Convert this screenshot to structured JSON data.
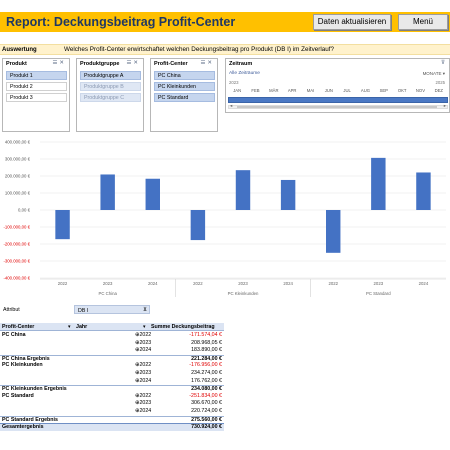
{
  "header": {
    "title": "Report: Deckungsbeitrag Profit-Center",
    "refresh_label": "Daten aktualisieren",
    "menu_label": "Menü"
  },
  "question": {
    "label": "Auswertung",
    "text": "Welches Profit-Center erwirtschaftet welchen Deckungsbeitrag pro Produkt (DB I) im Zeitverlauf?"
  },
  "slicers": {
    "produkt": {
      "title": "Produkt",
      "items": [
        "Produkt 1",
        "Produkt 2",
        "Produkt 3"
      ]
    },
    "produktgruppe": {
      "title": "Produktgruppe",
      "items": [
        "Produktgruppe A",
        "Produktgruppe B",
        "Produktgruppe C"
      ]
    },
    "profitcenter": {
      "title": "Profit-Center",
      "items": [
        "PC China",
        "PC Kleinkunden",
        "PC Standard"
      ]
    }
  },
  "timeline": {
    "title": "Zeitraum",
    "all_label": "Alle Zeiträume",
    "unit": "MONATE",
    "year_start": "2023",
    "year_end": "2025",
    "months": [
      "JAN",
      "FEB",
      "MÄR",
      "APR",
      "MAI",
      "JUN",
      "JUL",
      "AUG",
      "SEP",
      "OKT",
      "NOV",
      "DEZ"
    ]
  },
  "chart_data": {
    "type": "bar",
    "ylim": [
      -400000,
      400000
    ],
    "yticks": [
      "400.000,00 €",
      "300.000,00 €",
      "200.000,00 €",
      "100.000,00 €",
      "0,00 €",
      "-100.000,00 €",
      "-200.000,00 €",
      "-300.000,00 €",
      "-400.000,00 €"
    ],
    "ytick_values": [
      400000,
      300000,
      200000,
      100000,
      0,
      -100000,
      -200000,
      -300000,
      -400000
    ],
    "groups": [
      {
        "name": "PC China",
        "categories": [
          "2022",
          "2023",
          "2024"
        ],
        "values": [
          -171574,
          208968,
          183890
        ]
      },
      {
        "name": "PC Kleinkunden",
        "categories": [
          "2022",
          "2023",
          "2024"
        ],
        "values": [
          -176956,
          234274,
          176762
        ]
      },
      {
        "name": "PC Standard",
        "categories": [
          "2022",
          "2023",
          "2024"
        ],
        "values": [
          -251834,
          306670,
          220724
        ]
      }
    ],
    "bar_color": "#4472c4",
    "negative_tick_color": "#e00000",
    "grid": true
  },
  "pivot": {
    "attribute_label": "Attribut",
    "attribute_value": "DB I",
    "headers": {
      "pc": "Profit-Center",
      "year": "Jahr",
      "sum": "Summe Deckungsbeitrag"
    },
    "rows": [
      {
        "pc": "PC China",
        "year": "2022",
        "value": "-171.574,04 €",
        "neg": true
      },
      {
        "pc": "",
        "year": "2023",
        "value": "208.968,05 €",
        "neg": false
      },
      {
        "pc": "",
        "year": "2024",
        "value": "183.890,00 €",
        "neg": false
      },
      {
        "pc": "PC China Ergebnis",
        "year": "",
        "value": "221.284,00 €",
        "neg": false,
        "subtotal": true
      },
      {
        "pc": "PC Kleinkunden",
        "year": "2022",
        "value": "-176.956,00 €",
        "neg": true
      },
      {
        "pc": "",
        "year": "2023",
        "value": "234.274,00 €",
        "neg": false
      },
      {
        "pc": "",
        "year": "2024",
        "value": "176.762,00 €",
        "neg": false
      },
      {
        "pc": "PC Kleinkunden Ergebnis",
        "year": "",
        "value": "234.080,00 €",
        "neg": false,
        "subtotal": true
      },
      {
        "pc": "PC Standard",
        "year": "2022",
        "value": "-251.834,00 €",
        "neg": true
      },
      {
        "pc": "",
        "year": "2023",
        "value": "306.670,00 €",
        "neg": false
      },
      {
        "pc": "",
        "year": "2024",
        "value": "220.724,00 €",
        "neg": false
      },
      {
        "pc": "PC Standard Ergebnis",
        "year": "",
        "value": "275.560,00 €",
        "neg": false,
        "subtotal": true
      },
      {
        "pc": "Gesamtergebnis",
        "year": "",
        "value": "730.924,00 €",
        "neg": false,
        "total": true
      }
    ]
  }
}
